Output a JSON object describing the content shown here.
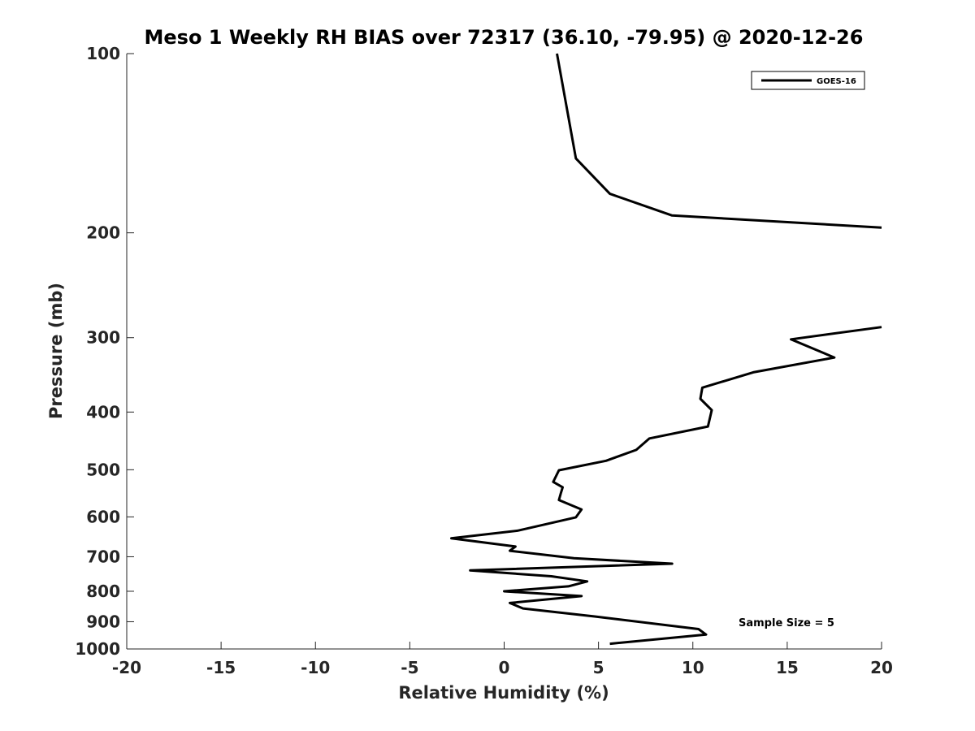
{
  "chart_data": {
    "type": "line",
    "title": "Meso 1 Weekly RH BIAS over 72317 (36.10, -79.95) @ 2020-12-26",
    "xlabel": "Relative Humidity (%)",
    "ylabel": "Pressure (mb)",
    "xlim": [
      -20,
      20
    ],
    "ylim": [
      100,
      1000
    ],
    "y_scale": "log",
    "y_direction": "reversed",
    "xticks": [
      -20,
      -15,
      -10,
      -5,
      0,
      5,
      10,
      15,
      20
    ],
    "xtick_labels": [
      "-20",
      "-15",
      "-10",
      "-5",
      "0",
      "5",
      "10",
      "15",
      "20"
    ],
    "yticks": [
      100,
      200,
      300,
      400,
      500,
      600,
      700,
      800,
      900,
      1000
    ],
    "ytick_labels": [
      "100",
      "200",
      "300",
      "400",
      "500",
      "600",
      "700",
      "800",
      "900",
      "1000"
    ],
    "grid": false,
    "legend_placement": "top-right",
    "annotation": "Sample Size = 5",
    "series": [
      {
        "name": "GOES-16",
        "color": "#000000",
        "segments": [
          {
            "x": [
              2.8,
              3.8,
              5.6,
              8.9,
              20.0
            ],
            "y": [
              100,
              150,
              172,
              187,
              196
            ]
          },
          {
            "x": [
              20.0,
              15.2,
              17.5,
              13.2,
              10.5,
              10.4,
              11.0,
              10.8,
              7.7,
              7.0,
              5.4,
              2.9,
              2.6,
              3.1,
              3.0,
              2.9,
              4.1,
              3.8,
              0.7,
              -2.8,
              0.6,
              0.3,
              3.7,
              8.9,
              -1.8,
              2.5,
              4.4,
              3.4,
              0.0,
              4.1,
              0.3,
              1.0,
              4.8,
              10.3,
              10.7,
              5.6
            ],
            "y": [
              288,
              302,
              324,
              343,
              364,
              380,
              397,
              423,
              443,
              463,
              483,
              501,
              524,
              535,
              548,
              562,
              583,
              601,
              633,
              652,
              673,
              684,
              704,
              719,
              738,
              755,
              770,
              785,
              800,
              815,
              837,
              855,
              882,
              926,
              946,
              980
            ]
          }
        ]
      }
    ]
  }
}
